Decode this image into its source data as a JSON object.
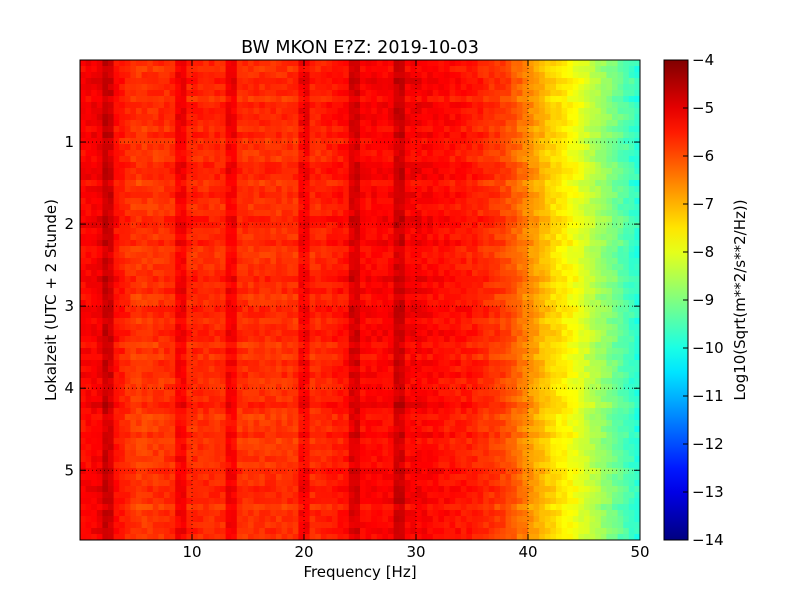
{
  "chart_data": {
    "type": "heatmap",
    "title": "BW MKON E?Z: 2019-10-03",
    "xlabel": "Frequency [Hz]",
    "ylabel": "Lokalzeit (UTC + 2 Stunde)",
    "xlim": [
      0,
      50
    ],
    "ylim": [
      5.85,
      0
    ],
    "x_ticks": [
      10,
      20,
      30,
      40,
      50
    ],
    "y_ticks": [
      1,
      2,
      3,
      4,
      5
    ],
    "grid": true,
    "colormap": "jet",
    "colorbar": {
      "label": "Log10(Sqrt(m**2/s**2/Hz))",
      "range": [
        -14,
        -4
      ],
      "ticks": [
        -4,
        -5,
        -6,
        -7,
        -8,
        -9,
        -10,
        -11,
        -12,
        -13,
        -14
      ]
    },
    "spectrum_profile": {
      "frequency_hz": [
        0,
        2,
        5,
        10,
        15,
        20,
        25,
        30,
        35,
        38,
        40,
        42,
        44,
        46,
        48,
        50
      ],
      "log10_amplitude": [
        -5.3,
        -5.1,
        -5.8,
        -5.6,
        -5.7,
        -5.7,
        -5.3,
        -5.2,
        -5.5,
        -5.9,
        -6.6,
        -7.3,
        -7.8,
        -8.5,
        -9.2,
        -9.9
      ]
    },
    "spectral_lines_hz": [
      2.5,
      9,
      13.6,
      20,
      24.5,
      28.5
    ]
  }
}
